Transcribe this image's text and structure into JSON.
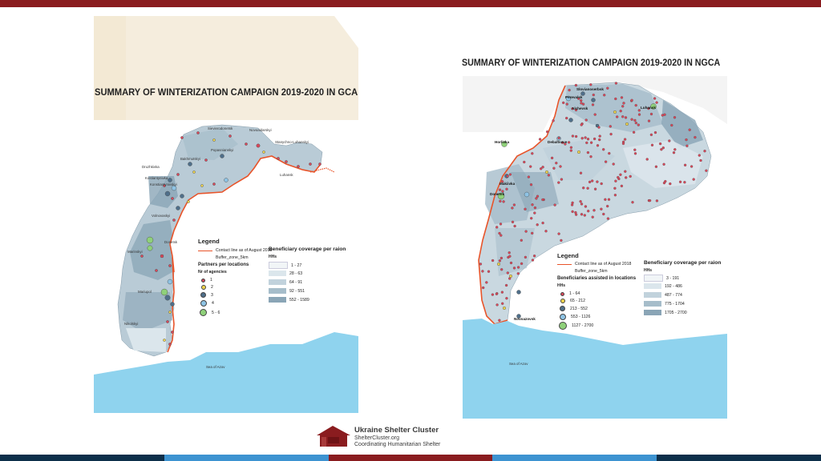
{
  "colors": {
    "top_bar": "#8a1c1f",
    "bottom_bar": [
      "#0d2f4a",
      "#3d93d1",
      "#8a1c1f",
      "#3d93d1",
      "#0d2f4a"
    ],
    "contact_line": "#e8542a",
    "sea": "#8fd3ee",
    "coverage_classes": [
      "#dbe6ec",
      "#c1d2dc",
      "#a6bdca",
      "#8aa5b6"
    ],
    "dot_classes": [
      "#d9475a",
      "#f0d44c",
      "#4f6f8a",
      "#8ec3e4",
      "#8fd17a"
    ]
  },
  "gca_map": {
    "title": "SUMMARY OF WINTERIZATION CAMPAIGN 2019-2020 IN GCA",
    "legend": {
      "title": "Legend",
      "contact_line": "Contact line as of August 2018",
      "buffer_zone": "Buffer_zone_5km",
      "partners_title": "Partners per locations",
      "agencies_title": "Nr of agencies",
      "agency_classes": [
        "1",
        "2",
        "3",
        "4",
        "5 - 6"
      ],
      "coverage_title": "Beneficiary coverage per raion",
      "coverage_unit": "HHs",
      "coverage_classes": [
        "1 - 27",
        "28 - 63",
        "64 - 91",
        "92 - 551",
        "552 - 1589"
      ]
    },
    "places": [
      "Sievierodonetsk",
      "Novoaidarskyi",
      "Stanychno-Luhanskyi",
      "Popasnianskyi",
      "Bakhmutskyi",
      "Druzhkivka",
      "Kostiantynivka",
      "Konstiantynivskyi",
      "Volnovaskyi",
      "Marinskyi",
      "Mariupol",
      "Nikolskyi",
      "Luhansk",
      "Donetsk",
      "Sea of Azov"
    ]
  },
  "ngca_map": {
    "title": "SUMMARY OF WINTERIZATION CAMPAIGN 2019-2020 IN NGCA",
    "legend": {
      "title": "Legend",
      "contact_line": "Contact line as of August 2018",
      "buffer_zone": "Buffer_zone_5km",
      "beneficiaries_title": "Beneficiaries assisted in locations",
      "beneficiaries_unit": "HHs",
      "beneficiary_classes": [
        "1 - 64",
        "65 - 212",
        "213 - 552",
        "553 - 1126",
        "1127 - 2700"
      ],
      "coverage_title": "Beneficiary coverage per raion",
      "coverage_unit": "HHs",
      "coverage_classes": [
        "3 - 191",
        "192 - 486",
        "487 - 774",
        "775 - 1704",
        "1705 - 2700"
      ]
    },
    "places": [
      "Slovianoserbsk",
      "Perevalsk",
      "Alchevsk",
      "Luhansk",
      "Horlivka",
      "Debaltseve",
      "Makiivka",
      "Donetsk",
      "Novoazovsk",
      "Sea of Azov"
    ]
  },
  "footer": {
    "org_name": "Ukraine Shelter Cluster",
    "website": "ShelterCluster.org",
    "tagline": "Coordinating Humanitarian Shelter"
  }
}
